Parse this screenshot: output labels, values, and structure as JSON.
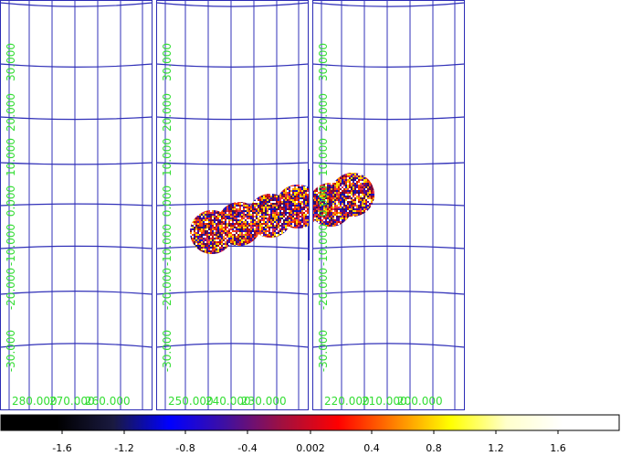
{
  "colors": {
    "frame": "#2b2bb5",
    "grid": "#3030b8",
    "label": "#33dd33",
    "background": "#ffffff"
  },
  "panels": [
    {
      "name": "panel-left",
      "dec_labels": [
        "30.000",
        "20.000",
        "10.000",
        "0.000",
        "-10.000",
        "-20.000",
        "-30.000"
      ],
      "ra_labels": [
        "280.000",
        "270.000",
        "260.000"
      ]
    },
    {
      "name": "panel-middle",
      "dec_labels": [
        "30.000",
        "20.000",
        "10.000",
        "0.000",
        "-10.000",
        "-20.000",
        "-30.000"
      ],
      "ra_labels": [
        "250.000",
        "240.000",
        "230.000"
      ]
    },
    {
      "name": "panel-right",
      "dec_labels": [
        "30.000",
        "20.000",
        "10.000",
        "0.000",
        "-10.000",
        "-20.000",
        "-30.000"
      ],
      "ra_labels": [
        "220.000",
        "210.000",
        "200.000"
      ]
    }
  ],
  "colorbar": {
    "tick_labels": [
      "-1.6",
      "-1.2",
      "-0.8",
      "-0.4",
      "0.002",
      "0.4",
      "0.8",
      "1.2",
      "1.6"
    ],
    "gradient_stops": [
      "#000000",
      "#000000",
      "#1a1a40",
      "#0000ff",
      "#4010a0",
      "#a01040",
      "#ff0000",
      "#ff8000",
      "#ffff00",
      "#ffffcc",
      "#ffffff",
      "#ffffff"
    ]
  }
}
